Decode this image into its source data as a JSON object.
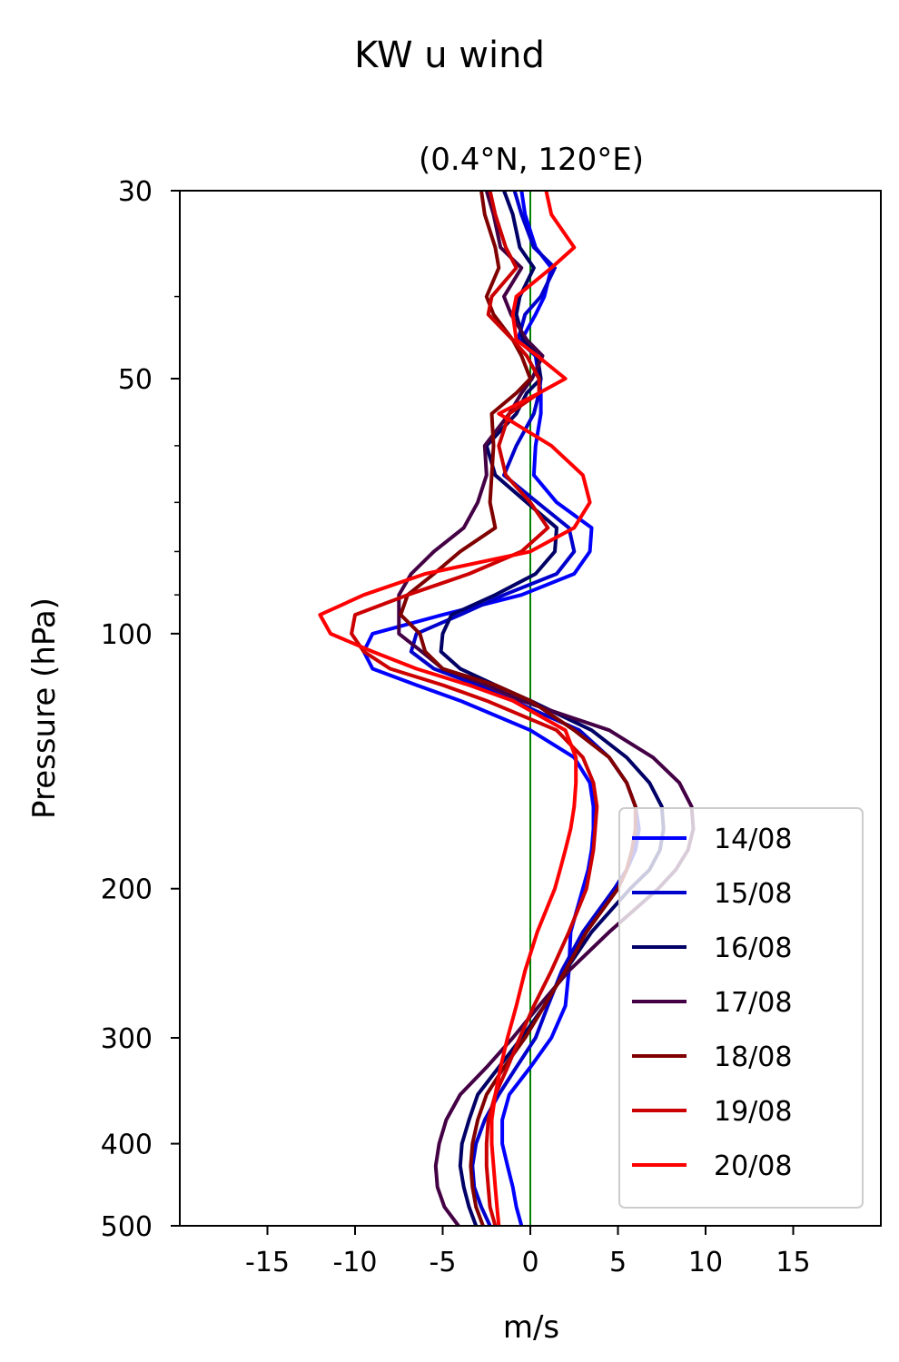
{
  "chart_data": {
    "type": "line",
    "title": "KW u wind",
    "subtitle": "(0.4°N, 120°E)",
    "xlabel": "m/s",
    "ylabel": "Pressure (hPa)",
    "xlim": [
      -20,
      20
    ],
    "ylim": [
      500,
      30
    ],
    "y_scale": "log",
    "xticks": [
      -15,
      -10,
      -5,
      0,
      5,
      10,
      15
    ],
    "xtick_labels": [
      "-15",
      "-10",
      "-5",
      "0",
      "5",
      "10",
      "15"
    ],
    "yticks": [
      30,
      50,
      100,
      200,
      300,
      400,
      500
    ],
    "ytick_labels": [
      "30",
      "50",
      "100",
      "200",
      "300",
      "400",
      "500"
    ],
    "y_minor_ticks": [
      40,
      60,
      70,
      80,
      90
    ],
    "grid": false,
    "legend_position": "lower-right",
    "reference_line": {
      "x": 0,
      "color": "#008000"
    },
    "pressure_levels": [
      30,
      32,
      35,
      37,
      40,
      42,
      45,
      47,
      50,
      52,
      55,
      60,
      65,
      70,
      75,
      80,
      85,
      90,
      95,
      100,
      105,
      110,
      115,
      120,
      130,
      140,
      150,
      160,
      170,
      180,
      190,
      200,
      225,
      250,
      275,
      300,
      325,
      350,
      375,
      400,
      425,
      450,
      475,
      500
    ],
    "series": [
      {
        "name": "14/08",
        "color": "#0000ff",
        "values": [
          -0.5,
          -0.3,
          0.3,
          1.2,
          0.8,
          0.3,
          -0.5,
          0.3,
          0.5,
          0.6,
          0.6,
          0.3,
          0.2,
          1.5,
          3.5,
          3.4,
          2.5,
          -0.5,
          -5,
          -9,
          -9.5,
          -9,
          -6.5,
          -4,
          0,
          2.5,
          3.4,
          3.6,
          3.6,
          3.5,
          3.3,
          3,
          2.3,
          2.2,
          2,
          1.2,
          0,
          -1.2,
          -1.6,
          -1.6,
          -1.3,
          -1,
          -0.8,
          -0.5
        ]
      },
      {
        "name": "15/08",
        "color": "#0000cc",
        "values": [
          -0.9,
          -0.5,
          0.2,
          1.4,
          0.6,
          -0.3,
          -0.7,
          0.3,
          0.6,
          0.5,
          0.2,
          -0.8,
          -1.5,
          0.4,
          2.2,
          2.5,
          1.5,
          -1.5,
          -4,
          -6.5,
          -6.8,
          -5.5,
          -3,
          -1,
          2.8,
          4.5,
          5.5,
          6,
          6.2,
          6,
          5.5,
          4.8,
          3,
          1.8,
          1,
          0.3,
          -0.8,
          -1.8,
          -2.6,
          -3.1,
          -3.3,
          -3.2,
          -2.8,
          -2.3
        ]
      },
      {
        "name": "16/08",
        "color": "#000066",
        "values": [
          -1.5,
          -1,
          -0.6,
          0.2,
          -0.6,
          -0.8,
          -0.4,
          0.4,
          0.6,
          -0.2,
          -0.8,
          -2.5,
          -2,
          -0.2,
          1.5,
          1.4,
          0.3,
          -2,
          -4.5,
          -5,
          -5.1,
          -4,
          -2,
          0,
          3.5,
          5.5,
          6.8,
          7.5,
          7.6,
          7.4,
          6.8,
          5.7,
          3.5,
          2,
          0.8,
          -0.5,
          -1.8,
          -3,
          -3.5,
          -3.9,
          -4,
          -3.8,
          -3.5,
          -3.1
        ]
      },
      {
        "name": "17/08",
        "color": "#440044",
        "values": [
          -2.5,
          -2.1,
          -1.7,
          -0.5,
          -1.5,
          -1.1,
          -0.2,
          0.7,
          0.1,
          -0.5,
          -1.2,
          -2.6,
          -2.5,
          -3,
          -3.8,
          -5.5,
          -6.8,
          -7.5,
          -7.5,
          -7.5,
          -6.2,
          -5,
          -2.5,
          -0.5,
          4.5,
          7,
          8.5,
          9.2,
          9.3,
          9,
          8.3,
          7.3,
          4.5,
          2.2,
          0.5,
          -1,
          -2.5,
          -4,
          -4.8,
          -5.2,
          -5.4,
          -5.3,
          -4.9,
          -4.1
        ]
      },
      {
        "name": "18/08",
        "color": "#800000",
        "values": [
          -2.8,
          -2.6,
          -2,
          -1.8,
          -2.5,
          -2.1,
          -1,
          -0.5,
          0,
          -0.8,
          -2.2,
          -2.1,
          -2.2,
          -2.3,
          -2,
          -4,
          -5.5,
          -7,
          -7.4,
          -6.3,
          -6,
          -5,
          -2,
          0,
          2.5,
          4.5,
          5.5,
          6,
          6,
          5.8,
          5.5,
          5,
          3.2,
          2,
          0.8,
          -0.3,
          -1.5,
          -2.5,
          -3,
          -3.3,
          -3.4,
          -3.3,
          -3.1,
          -2.7
        ]
      },
      {
        "name": "19/08",
        "color": "#cc0000",
        "values": [
          -2.3,
          -2,
          -1.4,
          -0.8,
          -2.2,
          -2.4,
          -1,
          -0.2,
          0.5,
          0.5,
          -1.2,
          -1.8,
          -1.4,
          0,
          1,
          -0.5,
          -3.5,
          -7,
          -10,
          -10.2,
          -9.5,
          -8,
          -5,
          -2.5,
          1.5,
          3,
          3.6,
          3.8,
          3.7,
          3.6,
          3.4,
          3.2,
          2.2,
          1.2,
          0.2,
          -0.6,
          -1.3,
          -2,
          -2.4,
          -2.5,
          -2.5,
          -2.4,
          -2.3,
          -2
        ]
      },
      {
        "name": "20/08",
        "color": "#ff0000",
        "values": [
          0.9,
          1.2,
          2.5,
          1.2,
          -0.8,
          -1,
          -0.8,
          0.4,
          2,
          0.5,
          -1.8,
          1.2,
          3,
          3.4,
          2.5,
          0,
          -6,
          -9.5,
          -12,
          -11.4,
          -9,
          -6.5,
          -3.5,
          -1,
          2,
          2.6,
          2.6,
          2.5,
          2.3,
          2,
          1.7,
          1.4,
          0.4,
          -0.3,
          -0.8,
          -1.3,
          -1.7,
          -2,
          -2.2,
          -2.2,
          -2.1,
          -2,
          -1.9,
          -1.8
        ]
      }
    ]
  }
}
